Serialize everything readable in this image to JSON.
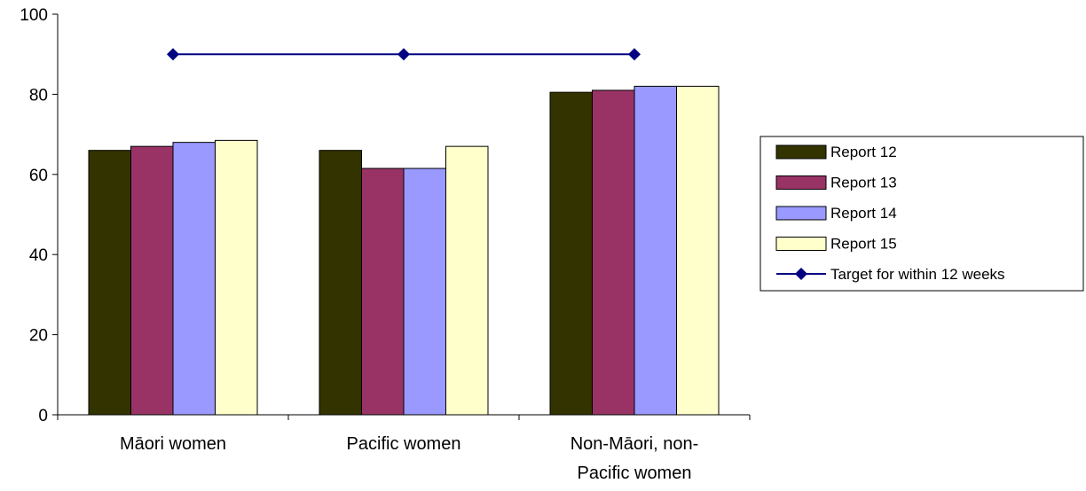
{
  "chart_data": {
    "type": "bar",
    "categories": [
      "Māori women",
      "Pacific women",
      "Non-Māori, non-Pacific women"
    ],
    "category_lines": [
      [
        "Māori women"
      ],
      [
        "Pacific women"
      ],
      [
        "Non-Māori, non-",
        "Pacific women"
      ]
    ],
    "series": [
      {
        "name": "Report 12",
        "values": [
          66,
          66,
          80.5
        ],
        "color": "#333300"
      },
      {
        "name": "Report 13",
        "values": [
          67,
          61.5,
          81
        ],
        "color": "#993366"
      },
      {
        "name": "Report 14",
        "values": [
          68,
          61.5,
          82
        ],
        "color": "#9999ff"
      },
      {
        "name": "Report 15",
        "values": [
          68.5,
          67,
          82
        ],
        "color": "#ffffcc"
      }
    ],
    "line_series": {
      "name": "Target for within 12 weeks",
      "values": [
        90,
        90,
        90
      ],
      "color": "#000080"
    },
    "ylim": [
      0,
      100
    ],
    "yticks": [
      0,
      20,
      40,
      60,
      80,
      100
    ],
    "title": "",
    "xlabel": "",
    "ylabel": "",
    "grid": false,
    "legend": "right"
  }
}
